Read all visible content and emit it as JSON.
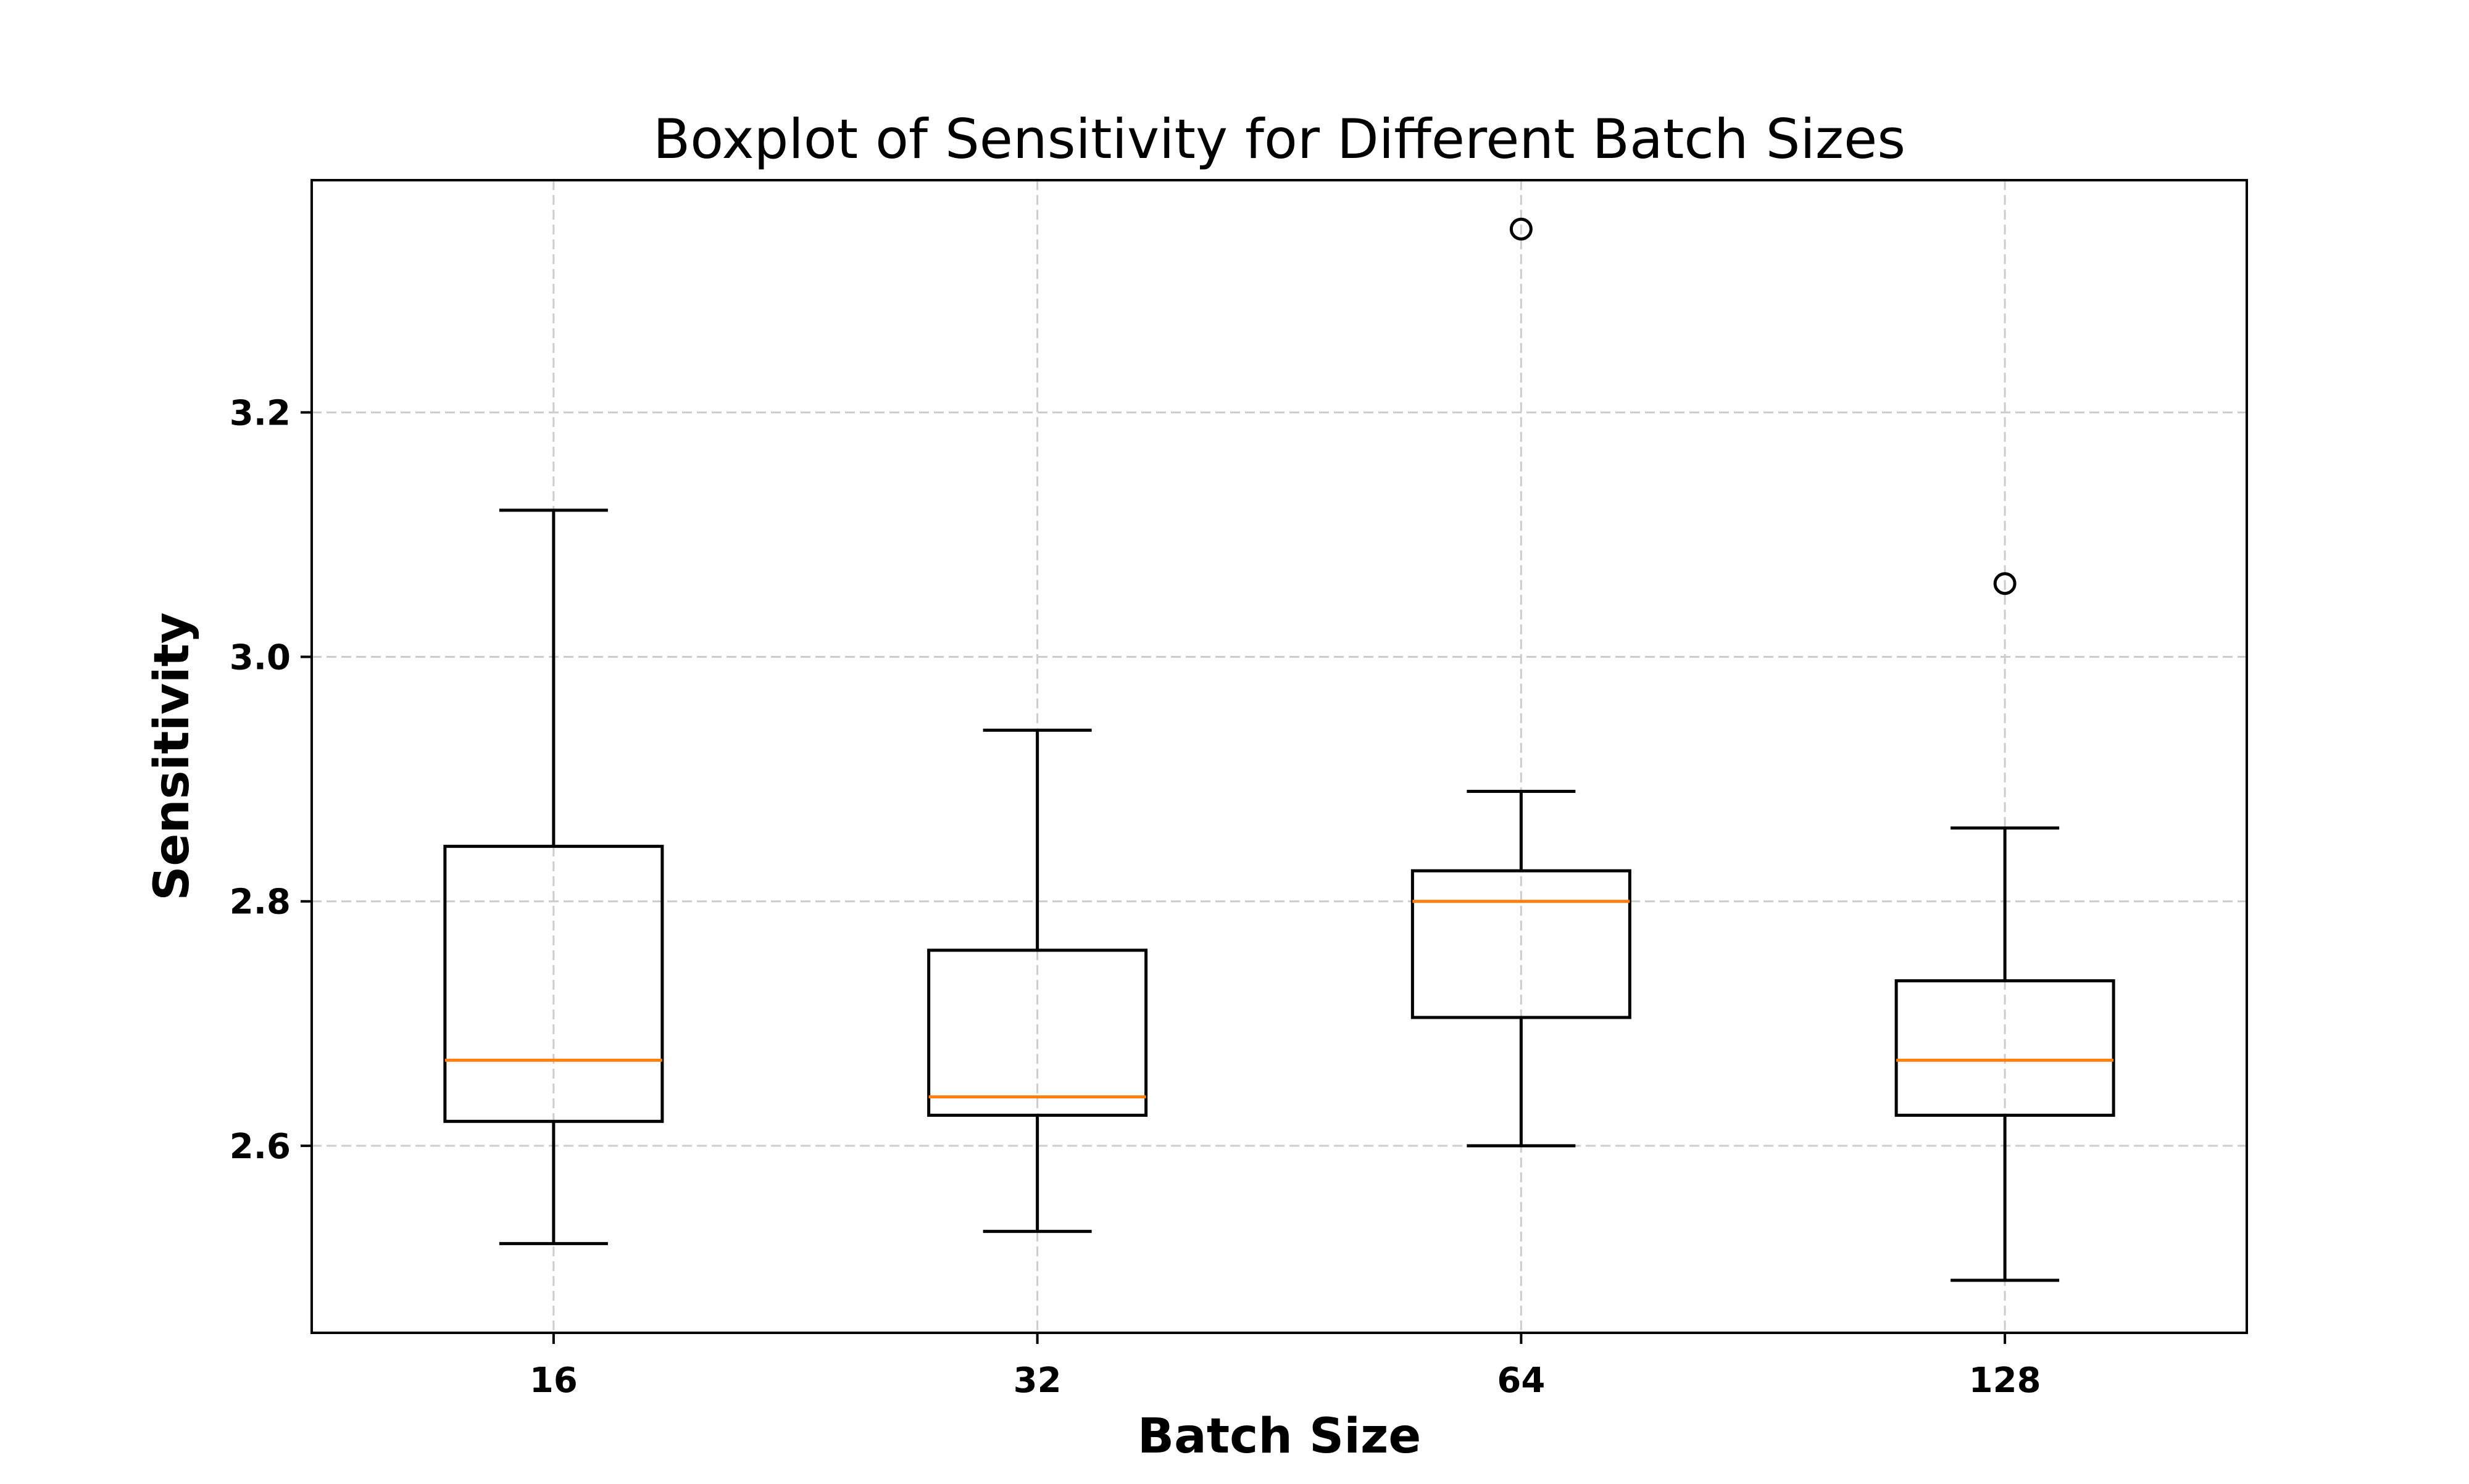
{
  "chart_data": {
    "type": "box",
    "title": "Boxplot of Sensitivity for Different Batch Sizes",
    "xlabel": "Batch Size",
    "ylabel": "Sensitivity",
    "categories": [
      "16",
      "32",
      "64",
      "128"
    ],
    "yticks": [
      2.6,
      2.8,
      3.0,
      3.2
    ],
    "ytick_labels": [
      "2.6",
      "2.8",
      "3.0",
      "3.2"
    ],
    "ylim": [
      2.447,
      3.39
    ],
    "grid": true,
    "boxes": [
      {
        "category": "16",
        "whisker_low": 2.52,
        "q1": 2.62,
        "median": 2.67,
        "q3": 2.845,
        "whisker_high": 3.12,
        "outliers": []
      },
      {
        "category": "32",
        "whisker_low": 2.53,
        "q1": 2.625,
        "median": 2.64,
        "q3": 2.76,
        "whisker_high": 2.94,
        "outliers": []
      },
      {
        "category": "64",
        "whisker_low": 2.6,
        "q1": 2.705,
        "median": 2.8,
        "q3": 2.825,
        "whisker_high": 2.89,
        "outliers": [
          3.35
        ]
      },
      {
        "category": "128",
        "whisker_low": 2.49,
        "q1": 2.625,
        "median": 2.67,
        "q3": 2.735,
        "whisker_high": 2.86,
        "outliers": [
          3.06
        ]
      }
    ],
    "colors": {
      "box": "#000000",
      "median": "#ff7f0e",
      "grid": "#cccccc"
    }
  }
}
